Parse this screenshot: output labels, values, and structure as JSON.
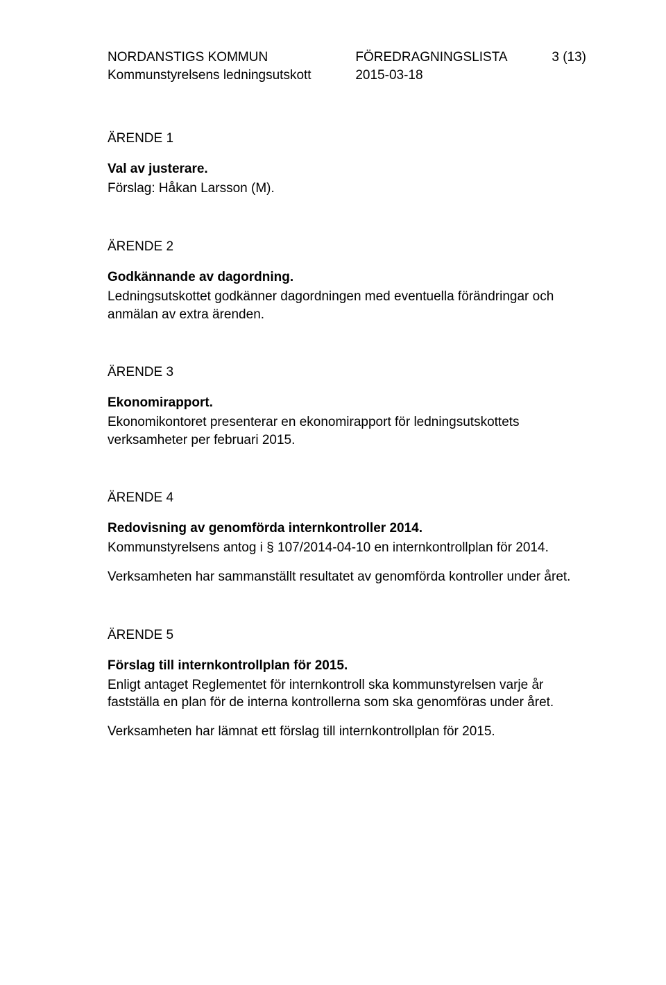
{
  "header": {
    "org": "NORDANSTIGS KOMMUN",
    "subunit": "Kommunstyrelsens ledningsutskott",
    "docTitle": "FÖREDRAGNINGSLISTA",
    "date": "2015-03-18",
    "pageIndicator": "3 (13)"
  },
  "sections": [
    {
      "heading": "ÄRENDE 1",
      "title": "Val av justerare.",
      "paragraphs": [
        "Förslag: Håkan Larsson (M)."
      ]
    },
    {
      "heading": "ÄRENDE 2",
      "title": "Godkännande av dagordning.",
      "paragraphs": [
        "Ledningsutskottet godkänner dagordningen med eventuella förändringar och anmälan av extra ärenden."
      ]
    },
    {
      "heading": "ÄRENDE 3",
      "title": "Ekonomirapport.",
      "paragraphs": [
        "Ekonomikontoret presenterar en ekonomirapport för ledningsutskottets verksamheter per februari 2015."
      ]
    },
    {
      "heading": "ÄRENDE 4",
      "title": "Redovisning av genomförda internkontroller 2014.",
      "paragraphs": [
        "Kommunstyrelsens antog i § 107/2014-04-10 en internkontrollplan för 2014.",
        "Verksamheten har sammanställt resultatet av genomförda kontroller under året."
      ]
    },
    {
      "heading": "ÄRENDE 5",
      "title": "Förslag till internkontrollplan för 2015.",
      "paragraphs": [
        "Enligt antaget Reglementet för internkontroll ska kommunstyrelsen varje år fastställa en plan för de interna kontrollerna som ska genomföras under året.",
        "Verksamheten har lämnat ett förslag till internkontrollplan för 2015."
      ]
    }
  ]
}
